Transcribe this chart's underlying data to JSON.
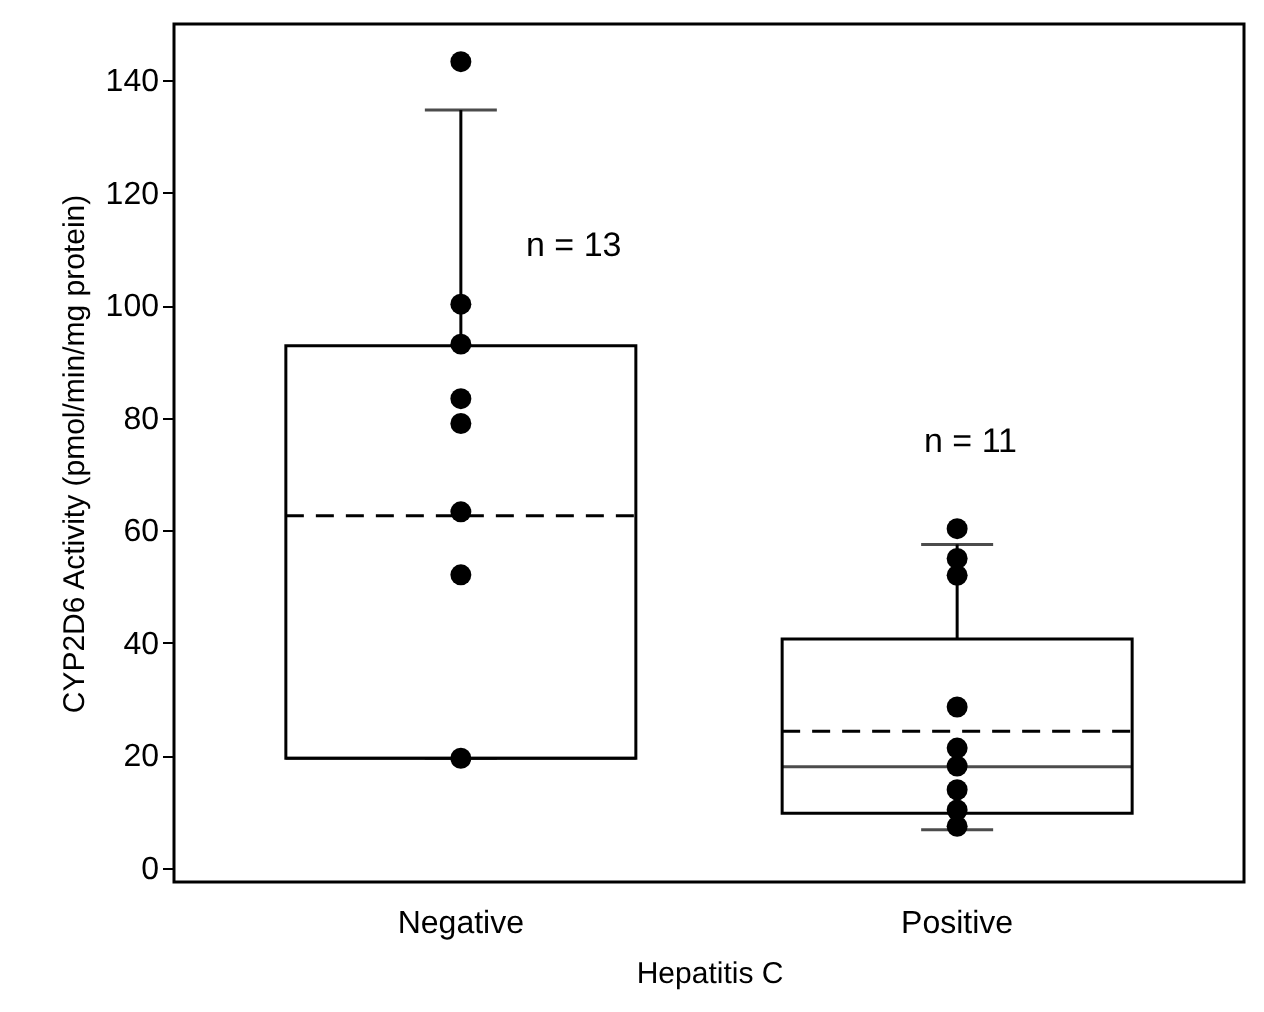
{
  "chart_data": {
    "type": "box",
    "xlabel": "Hepatitis C",
    "ylabel": "CYP2D6 Activity (pmol/min/mg protein)",
    "categories": [
      "Negative",
      "Positive"
    ],
    "boxes": [
      {
        "low": 19.5,
        "q1": 19.5,
        "median": 19.5,
        "q3": 92.8,
        "high": 134.7,
        "mean": 62.6
      },
      {
        "low": 6.8,
        "q1": 9.7,
        "median": 18,
        "q3": 40.7,
        "high": 57.5,
        "mean": 24.3
      }
    ],
    "series": [
      {
        "type": "scatter",
        "color": "#000000",
        "marker": "circle",
        "x": [
          "Negative",
          "Negative",
          "Negative",
          "Negative",
          "Negative",
          "Negative",
          "Negative",
          "Negative",
          "Positive",
          "Positive",
          "Positive",
          "Positive",
          "Positive",
          "Positive",
          "Positive",
          "Positive",
          "Positive"
        ],
        "values": [
          143.3,
          100.2,
          93.1,
          83.4,
          79,
          63.3,
          52.1,
          19.5,
          60.3,
          55,
          52,
          28.6,
          21.3,
          18.1,
          13.9,
          10.3,
          7.4
        ]
      }
    ],
    "ylim": [
      -2.5,
      150
    ],
    "yticks": [
      0,
      20,
      40,
      60,
      80,
      100,
      120,
      140
    ],
    "grid": false,
    "annotations": [
      "n = 13",
      "n = 11"
    ]
  }
}
